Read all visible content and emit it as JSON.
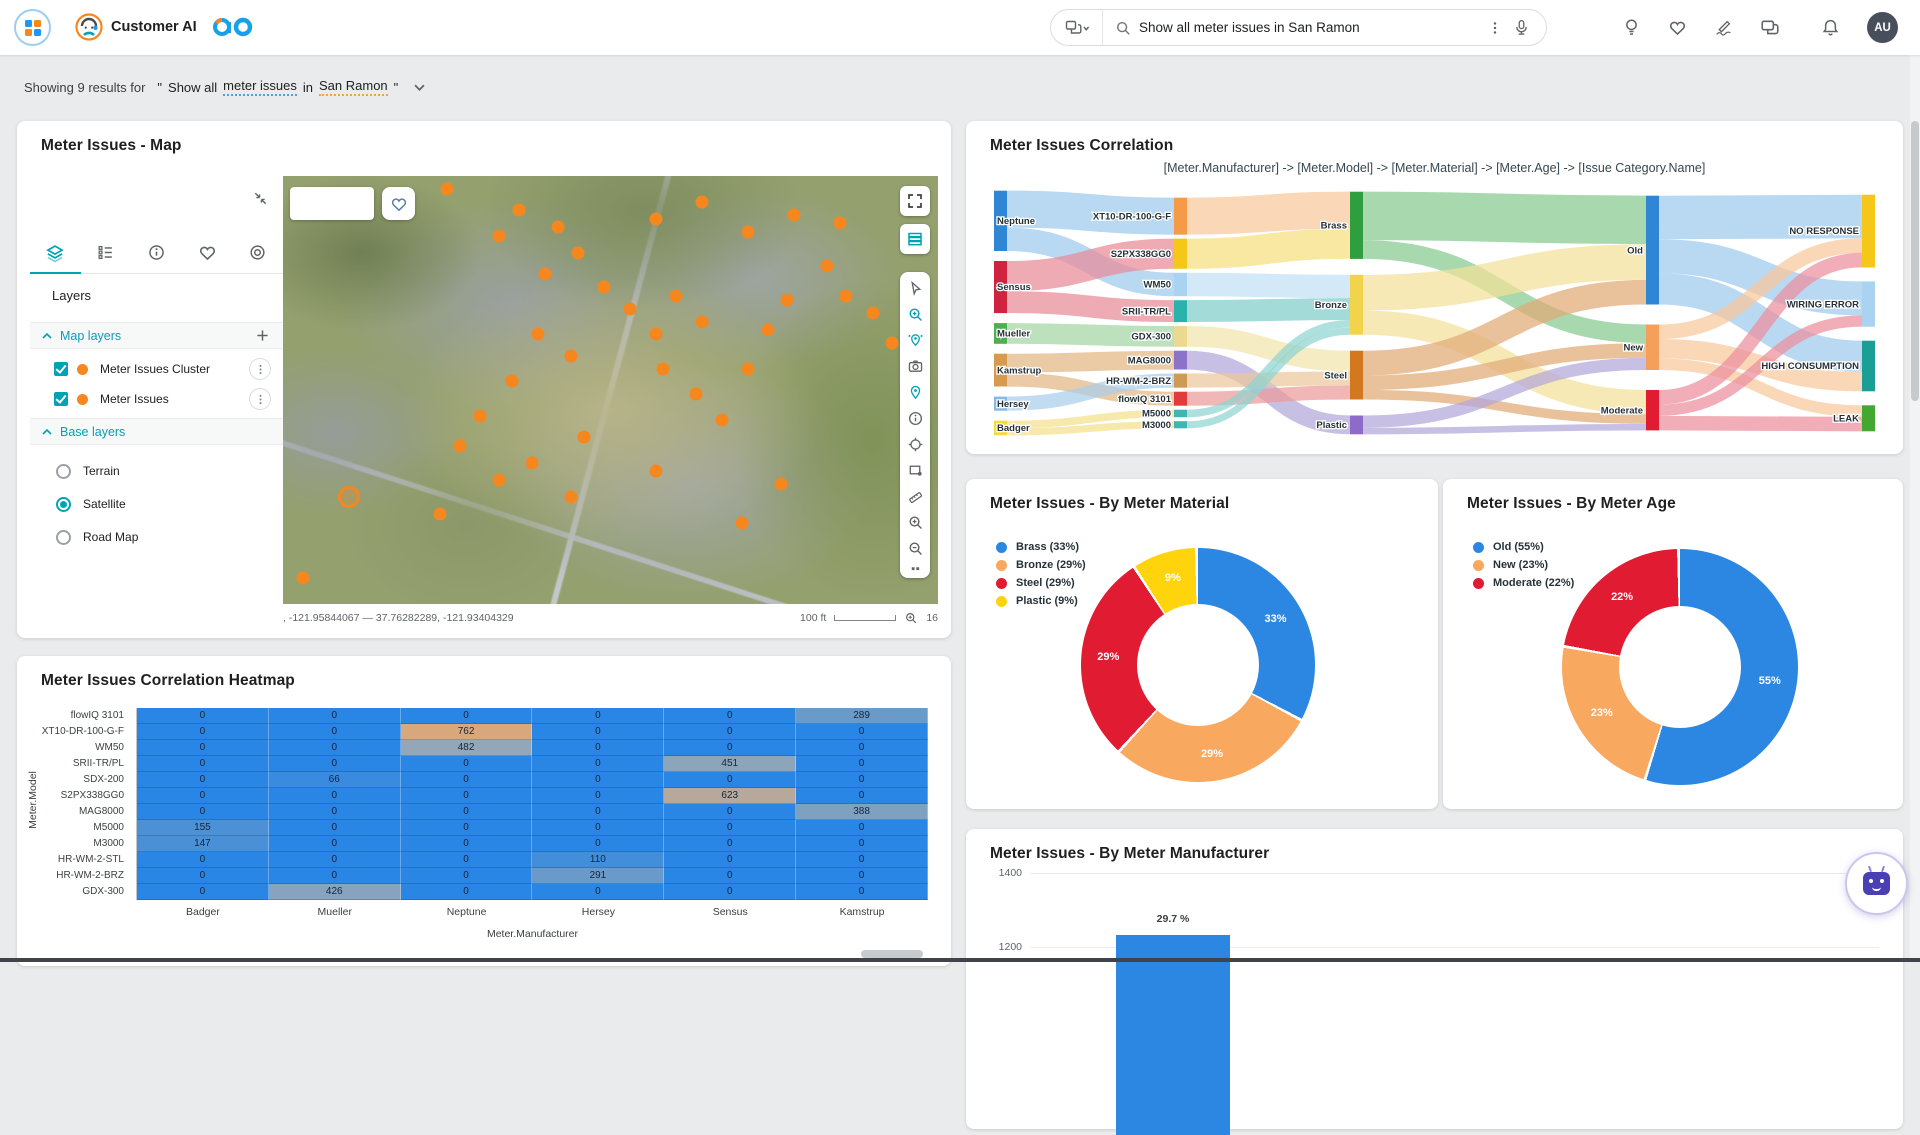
{
  "topbar": {
    "brand": "Customer AI",
    "search": {
      "query": "Show all meter issues in San Ramon"
    },
    "avatar": "AU"
  },
  "results_bar": {
    "prefix": "Showing 9 results for",
    "open_quote": "\"",
    "part1": "Show all",
    "highlight1": "meter issues",
    "part2": "in",
    "highlight2": "San Ramon",
    "close_quote": "\""
  },
  "map_card": {
    "title": "Meter Issues - Map",
    "panel": {
      "heading": "Layers",
      "sections": {
        "map_layers": "Map layers",
        "base_layers": "Base layers"
      },
      "layers": [
        {
          "name": "Meter Issues Cluster"
        },
        {
          "name": "Meter Issues"
        }
      ],
      "base_layers": [
        {
          "name": "Terrain",
          "selected": false
        },
        {
          "name": "Satellite",
          "selected": true
        },
        {
          "name": "Road Map",
          "selected": false
        }
      ]
    },
    "footer": {
      "coords": ", -121.95844067   —   37.76282289, -121.93404329",
      "scale": "100 ft",
      "zoom": "16"
    },
    "markers": [
      [
        25,
        3
      ],
      [
        36,
        8
      ],
      [
        42,
        12
      ],
      [
        33,
        14
      ],
      [
        45,
        18
      ],
      [
        40,
        23
      ],
      [
        49,
        26
      ],
      [
        53,
        31
      ],
      [
        57,
        37
      ],
      [
        60,
        28
      ],
      [
        64,
        34
      ],
      [
        58,
        45
      ],
      [
        63,
        51
      ],
      [
        67,
        57
      ],
      [
        71,
        45
      ],
      [
        74,
        36
      ],
      [
        77,
        29
      ],
      [
        83,
        21
      ],
      [
        86,
        28
      ],
      [
        90,
        32
      ],
      [
        93,
        39
      ],
      [
        57,
        10
      ],
      [
        64,
        6
      ],
      [
        71,
        13
      ],
      [
        78,
        9
      ],
      [
        85,
        11
      ],
      [
        39,
        37
      ],
      [
        44,
        42
      ],
      [
        35,
        48
      ],
      [
        30,
        56
      ],
      [
        27,
        63
      ],
      [
        33,
        71
      ],
      [
        38,
        67
      ],
      [
        46,
        61
      ],
      [
        24,
        79
      ],
      [
        10,
        75,
        "ring"
      ],
      [
        3,
        94
      ],
      [
        44,
        75
      ],
      [
        57,
        69
      ],
      [
        70,
        81
      ],
      [
        76,
        72
      ]
    ]
  },
  "chart_data": [
    {
      "type": "sankey",
      "title": "Meter Issues Correlation",
      "subtitle": "[Meter.Manufacturer] -> [Meter.Model] -> [Meter.Material] -> [Meter.Age] -> [Issue Category.Name]",
      "nodes": [
        {
          "id": "Neptune",
          "col": 0,
          "color": "#2f86d4"
        },
        {
          "id": "Sensus",
          "col": 0,
          "color": "#cf2340"
        },
        {
          "id": "Mueller",
          "col": 0,
          "color": "#4caf50"
        },
        {
          "id": "Kamstrup",
          "col": 0,
          "color": "#d89a4e"
        },
        {
          "id": "Hersey",
          "col": 0,
          "color": "#85b9e8"
        },
        {
          "id": "Badger",
          "col": 0,
          "color": "#f6d93f"
        },
        {
          "id": "XT10-DR-100-G-F",
          "col": 1,
          "color": "#f59a47"
        },
        {
          "id": "S2PX338GG0",
          "col": 1,
          "color": "#f4c718"
        },
        {
          "id": "WM50",
          "col": 1,
          "color": "#a9d3f0"
        },
        {
          "id": "SRII-TR/PL",
          "col": 1,
          "color": "#2ab3ad"
        },
        {
          "id": "GDX-300",
          "col": 1,
          "color": "#ead98e"
        },
        {
          "id": "MAG8000",
          "col": 1,
          "color": "#8d72c9"
        },
        {
          "id": "HR-WM-2-BRZ",
          "col": 1,
          "color": "#cf9a56"
        },
        {
          "id": "flowIQ 3101",
          "col": 1,
          "color": "#e23b3b"
        },
        {
          "id": "M5000",
          "col": 1,
          "color": "#3fb6b2"
        },
        {
          "id": "M3000",
          "col": 1,
          "color": "#3fb6b2"
        },
        {
          "id": "Brass",
          "col": 2,
          "color": "#2e9e3f"
        },
        {
          "id": "Bronze",
          "col": 2,
          "color": "#f2d44c"
        },
        {
          "id": "Steel",
          "col": 2,
          "color": "#d2791f"
        },
        {
          "id": "Plastic",
          "col": 2,
          "color": "#8e6bc8"
        },
        {
          "id": "Old",
          "col": 3,
          "color": "#2f86d4"
        },
        {
          "id": "New",
          "col": 3,
          "color": "#f5a05a"
        },
        {
          "id": "Moderate",
          "col": 3,
          "color": "#e01b32"
        },
        {
          "id": "NO RESPONSE",
          "col": 4,
          "color": "#f4c718"
        },
        {
          "id": "WIRING ERROR",
          "col": 4,
          "color": "#a9d3f0"
        },
        {
          "id": "HIGH CONSUMPTION",
          "col": 4,
          "color": "#1b9e96"
        },
        {
          "id": "LEAK",
          "col": 4,
          "color": "#43a832"
        }
      ],
      "links": [
        {
          "s": "Neptune",
          "t": "XT10-DR-100-G-F",
          "v": 762,
          "c": "#9ec9ed"
        },
        {
          "s": "Neptune",
          "t": "WM50",
          "v": 482,
          "c": "#9ec9ed"
        },
        {
          "s": "Sensus",
          "t": "S2PX338GG0",
          "v": 623,
          "c": "#e88a97"
        },
        {
          "s": "Sensus",
          "t": "SRII-TR/PL",
          "v": 451,
          "c": "#e88a97"
        },
        {
          "s": "Mueller",
          "t": "GDX-300",
          "v": 426,
          "c": "#a5d6a4"
        },
        {
          "s": "Kamstrup",
          "t": "MAG8000",
          "v": 388,
          "c": "#e3b584"
        },
        {
          "s": "Kamstrup",
          "t": "flowIQ 3101",
          "v": 289,
          "c": "#e3b584"
        },
        {
          "s": "Hersey",
          "t": "HR-WM-2-BRZ",
          "v": 291,
          "c": "#a9cfec"
        },
        {
          "s": "Badger",
          "t": "M5000",
          "v": 155,
          "c": "#f3e08a"
        },
        {
          "s": "Badger",
          "t": "M3000",
          "v": 147,
          "c": "#f3e08a"
        },
        {
          "s": "XT10-DR-100-G-F",
          "t": "Brass",
          "v": 762,
          "c": "#f8c89a"
        },
        {
          "s": "S2PX338GG0",
          "t": "Brass",
          "v": 623,
          "c": "#f6df7e"
        },
        {
          "s": "WM50",
          "t": "Bronze",
          "v": 482,
          "c": "#c3e0f4"
        },
        {
          "s": "SRII-TR/PL",
          "t": "Bronze",
          "v": 451,
          "c": "#7fcdc9"
        },
        {
          "s": "GDX-300",
          "t": "Steel",
          "v": 426,
          "c": "#f2e5ad"
        },
        {
          "s": "MAG8000",
          "t": "Plastic",
          "v": 388,
          "c": "#b3a6d9"
        },
        {
          "s": "HR-WM-2-BRZ",
          "t": "Steel",
          "v": 291,
          "c": "#ecc79b"
        },
        {
          "s": "flowIQ 3101",
          "t": "Steel",
          "v": 289,
          "c": "#ec9a9a"
        },
        {
          "s": "M5000",
          "t": "Bronze",
          "v": 155,
          "c": "#8fd4d0"
        },
        {
          "s": "M3000",
          "t": "Bronze",
          "v": 147,
          "c": "#8fd4d0"
        },
        {
          "s": "Brass",
          "t": "Old",
          "v": 1000,
          "c": "#86c98d"
        },
        {
          "s": "Brass",
          "t": "New",
          "v": 385,
          "c": "#86c98d"
        },
        {
          "s": "Bronze",
          "t": "Old",
          "v": 735,
          "c": "#f2e09a"
        },
        {
          "s": "Bronze",
          "t": "Moderate",
          "v": 500,
          "c": "#f2e09a"
        },
        {
          "s": "Steel",
          "t": "Old",
          "v": 509,
          "c": "#e0ab76"
        },
        {
          "s": "Steel",
          "t": "New",
          "v": 300,
          "c": "#e0ab76"
        },
        {
          "s": "Steel",
          "t": "Moderate",
          "v": 197,
          "c": "#e0ab76"
        },
        {
          "s": "Plastic",
          "t": "New",
          "v": 253,
          "c": "#b3a6d9"
        },
        {
          "s": "Plastic",
          "t": "Moderate",
          "v": 135,
          "c": "#b3a6d9"
        },
        {
          "s": "Old",
          "t": "NO RESPONSE",
          "v": 900,
          "c": "#9ec9ed"
        },
        {
          "s": "Old",
          "t": "WIRING ERROR",
          "v": 700,
          "c": "#9ec9ed"
        },
        {
          "s": "Old",
          "t": "HIGH CONSUMPTION",
          "v": 644,
          "c": "#9ec9ed"
        },
        {
          "s": "New",
          "t": "NO RESPONSE",
          "v": 300,
          "c": "#f8c89a"
        },
        {
          "s": "New",
          "t": "HIGH CONSUMPTION",
          "v": 400,
          "c": "#f8c89a"
        },
        {
          "s": "New",
          "t": "LEAK",
          "v": 238,
          "c": "#f8c89a"
        },
        {
          "s": "Moderate",
          "t": "NO RESPONSE",
          "v": 300,
          "c": "#ec8f9c"
        },
        {
          "s": "Moderate",
          "t": "WIRING ERROR",
          "v": 234,
          "c": "#ec8f9c"
        },
        {
          "s": "Moderate",
          "t": "LEAK",
          "v": 298,
          "c": "#ec8f9c"
        }
      ]
    },
    {
      "type": "heatmap",
      "title": "Meter Issues Correlation Heatmap",
      "xlabel": "Meter.Manufacturer",
      "ylabel": "Meter.Model",
      "columns": [
        "Badger",
        "Mueller",
        "Neptune",
        "Hersey",
        "Sensus",
        "Kamstrup"
      ],
      "rows": [
        {
          "label": "flowIQ 3101",
          "values": [
            0,
            0,
            0,
            0,
            0,
            289
          ]
        },
        {
          "label": "XT10-DR-100-G-F",
          "values": [
            0,
            0,
            762,
            0,
            0,
            0
          ]
        },
        {
          "label": "WM50",
          "values": [
            0,
            0,
            482,
            0,
            0,
            0
          ]
        },
        {
          "label": "SRII-TR/PL",
          "values": [
            0,
            0,
            0,
            0,
            451,
            0
          ]
        },
        {
          "label": "SDX-200",
          "values": [
            0,
            66,
            0,
            0,
            0,
            0
          ]
        },
        {
          "label": "S2PX338GG0",
          "values": [
            0,
            0,
            0,
            0,
            623,
            0
          ]
        },
        {
          "label": "MAG8000",
          "values": [
            0,
            0,
            0,
            0,
            0,
            388
          ]
        },
        {
          "label": "M5000",
          "values": [
            155,
            0,
            0,
            0,
            0,
            0
          ]
        },
        {
          "label": "M3000",
          "values": [
            147,
            0,
            0,
            0,
            0,
            0
          ]
        },
        {
          "label": "HR-WM-2-STL",
          "values": [
            0,
            0,
            0,
            110,
            0,
            0
          ]
        },
        {
          "label": "HR-WM-2-BRZ",
          "values": [
            0,
            0,
            0,
            291,
            0,
            0
          ]
        },
        {
          "label": "GDX-300",
          "values": [
            0,
            426,
            0,
            0,
            0,
            0
          ]
        }
      ]
    },
    {
      "type": "pie",
      "title": "Meter Issues - By Meter Material",
      "slices": [
        {
          "label": "Brass",
          "pct": 33,
          "color": "#2b87e2"
        },
        {
          "label": "Bronze",
          "pct": 29,
          "color": "#f9a85f"
        },
        {
          "label": "Steel",
          "pct": 29,
          "color": "#e01b32"
        },
        {
          "label": "Plastic",
          "pct": 9,
          "color": "#ffd40d"
        }
      ]
    },
    {
      "type": "pie",
      "title": "Meter Issues - By Meter Age",
      "slices": [
        {
          "label": "Old",
          "pct": 55,
          "color": "#2b87e2"
        },
        {
          "label": "New",
          "pct": 23,
          "color": "#f9a85f"
        },
        {
          "label": "Moderate",
          "pct": 22,
          "color": "#e01b32"
        }
      ]
    },
    {
      "type": "bar",
      "title": "Meter Issues - By Meter Manufacturer",
      "visible_yticks": [
        "1400",
        "1200"
      ],
      "bar": {
        "label": "29.7 %",
        "color": "#2b87e2"
      }
    }
  ],
  "colors": {
    "accent_teal": "#00a3b4",
    "marker_orange": "#f6871f",
    "heat_low": "#2a86e4",
    "heat_mid": "#93a7b8",
    "heat_high": "#d8a87c"
  }
}
